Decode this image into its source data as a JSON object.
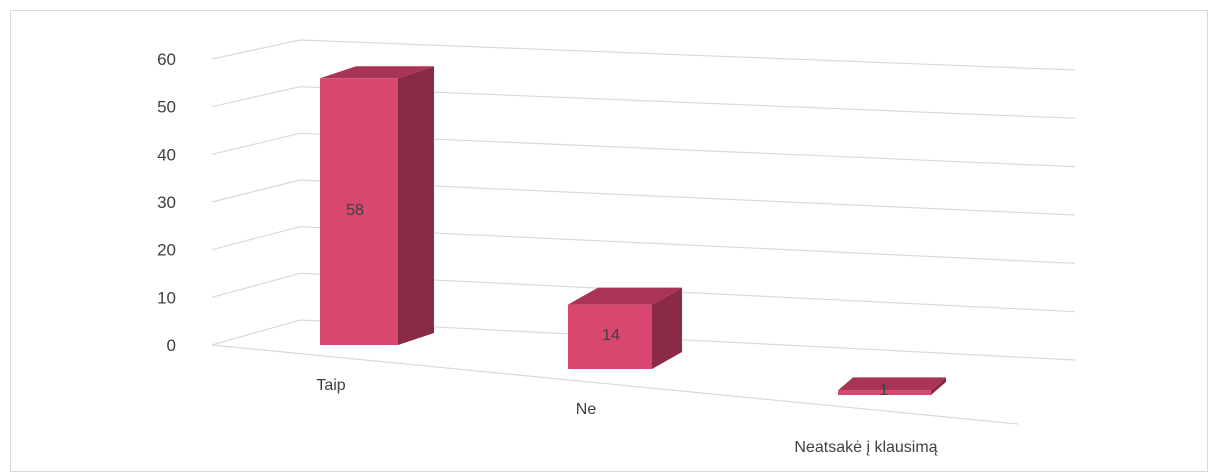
{
  "chart_data": {
    "type": "bar",
    "style": "3d-column",
    "categories": [
      "Taip",
      "Ne",
      "Neatsakė į klausimą"
    ],
    "values": [
      58,
      14,
      1
    ],
    "data_labels": [
      "58",
      "14",
      "1"
    ],
    "yticks": [
      "0",
      "10",
      "20",
      "30",
      "40",
      "50",
      "60"
    ],
    "ylim": [
      0,
      60
    ],
    "grid": true,
    "legend": "none",
    "colors": {
      "bar_front": "#d8476f",
      "bar_side": "#8b2a47",
      "bar_top": "#a93455",
      "grid": "#d9d9d9",
      "text": "#404040"
    }
  }
}
